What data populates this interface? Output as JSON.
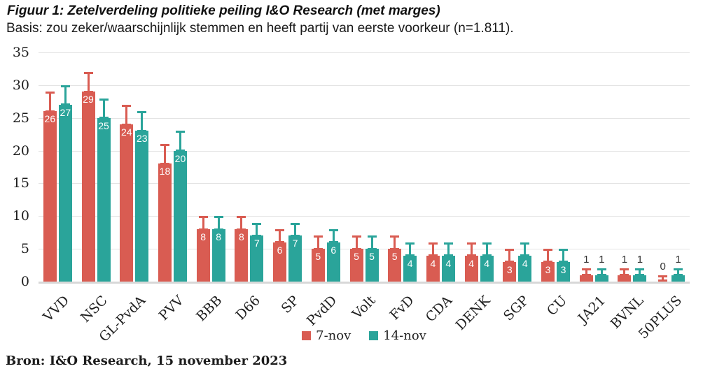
{
  "title": "Figuur 1: Zetelverdeling politieke peiling I&O Research (met marges)",
  "subtitle": "Basis: zou zeker/waarschijnlijk stemmen en heeft partij van eerste voorkeur (n=1.811).",
  "source": "Bron: I&O Research, 15 november 2023",
  "colors": {
    "series_7nov": "#d95c52",
    "series_14nov": "#2aa49a",
    "gridline": "#e3e3e3",
    "axis_line": "#d8d8d8",
    "inside_value_label": "#ffffff",
    "outside_value_label": "#333333",
    "text": "#1d1d1d"
  },
  "chart_data": {
    "type": "bar",
    "title": "Figuur 1: Zetelverdeling politieke peiling I&O Research (met marges)",
    "subtitle": "Basis: zou zeker/waarschijnlijk stemmen en heeft partij van eerste voorkeur (n=1.811).",
    "source_note": "Bron: I&O Research, 15 november 2023",
    "categories": [
      "VVD",
      "NSC",
      "GL-PvdA",
      "PVV",
      "BBB",
      "D66",
      "SP",
      "PvdD",
      "Volt",
      "FvD",
      "CDA",
      "DENK",
      "SGP",
      "CU",
      "JA21",
      "BVNL",
      "50PLUS"
    ],
    "series": [
      {
        "name": "7-nov",
        "color": "#d95c52",
        "values": [
          26,
          29,
          24,
          18,
          8,
          8,
          6,
          5,
          5,
          5,
          4,
          4,
          3,
          3,
          1,
          1,
          0
        ],
        "error_up": [
          3,
          3,
          3,
          3,
          2,
          2,
          2,
          2,
          2,
          2,
          2,
          2,
          2,
          2,
          1,
          1,
          1
        ]
      },
      {
        "name": "14-nov",
        "color": "#2aa49a",
        "values": [
          27,
          25,
          23,
          20,
          8,
          7,
          7,
          6,
          5,
          4,
          4,
          4,
          4,
          3,
          1,
          1,
          1
        ],
        "error_up": [
          3,
          3,
          3,
          3,
          2,
          2,
          2,
          2,
          2,
          2,
          2,
          2,
          2,
          2,
          1,
          1,
          1
        ]
      }
    ],
    "ylim": [
      0,
      35
    ],
    "yticks": [
      0,
      5,
      10,
      15,
      20,
      25,
      30,
      35
    ],
    "grid": true,
    "error_bars": "upper",
    "legend_position": "bottom-center",
    "value_label_inside_threshold": 2,
    "x_label_rotation_deg": -45
  }
}
